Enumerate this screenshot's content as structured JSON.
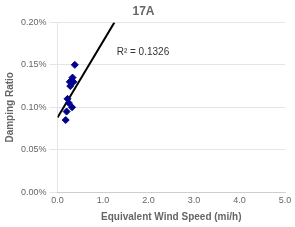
{
  "chart_data": {
    "type": "scatter",
    "title": "17A",
    "xlabel": "Equivalent Wind Speed (mi/h)",
    "ylabel": "Damping Ratio",
    "xlim": [
      0,
      5.0
    ],
    "ylim": [
      0.0,
      0.002
    ],
    "xticks": [
      {
        "value": 0.0,
        "label": "0.0"
      },
      {
        "value": 1.0,
        "label": "1.0"
      },
      {
        "value": 2.0,
        "label": "2.0"
      },
      {
        "value": 3.0,
        "label": "3.0"
      },
      {
        "value": 4.0,
        "label": "4.0"
      },
      {
        "value": 5.0,
        "label": "5.0"
      }
    ],
    "yticks": [
      {
        "value": 0.0,
        "label": "0.00%"
      },
      {
        "value": 0.0005,
        "label": "0.05%"
      },
      {
        "value": 0.001,
        "label": "0.10%"
      },
      {
        "value": 0.0015,
        "label": "0.15%"
      },
      {
        "value": 0.002,
        "label": "0.20%"
      }
    ],
    "grid": "y",
    "series": [
      {
        "type": "scatter",
        "color": "#00008B",
        "marker": "diamond",
        "x": [
          0.18,
          0.2,
          0.22,
          0.25,
          0.27,
          0.28,
          0.3,
          0.32,
          0.33,
          0.35,
          0.38
        ],
        "values": [
          0.00085,
          0.00095,
          0.0011,
          0.00105,
          0.0013,
          0.00125,
          0.0013,
          0.001,
          0.00135,
          0.0013,
          0.0015
        ]
      },
      {
        "type": "line",
        "color": "#000000",
        "x": [
          0.0,
          1.25
        ],
        "values": [
          0.00088,
          0.002
        ]
      }
    ],
    "annotations": [
      {
        "text": "R² = 0.1326",
        "x": 1.3,
        "y": 0.00165
      }
    ]
  }
}
